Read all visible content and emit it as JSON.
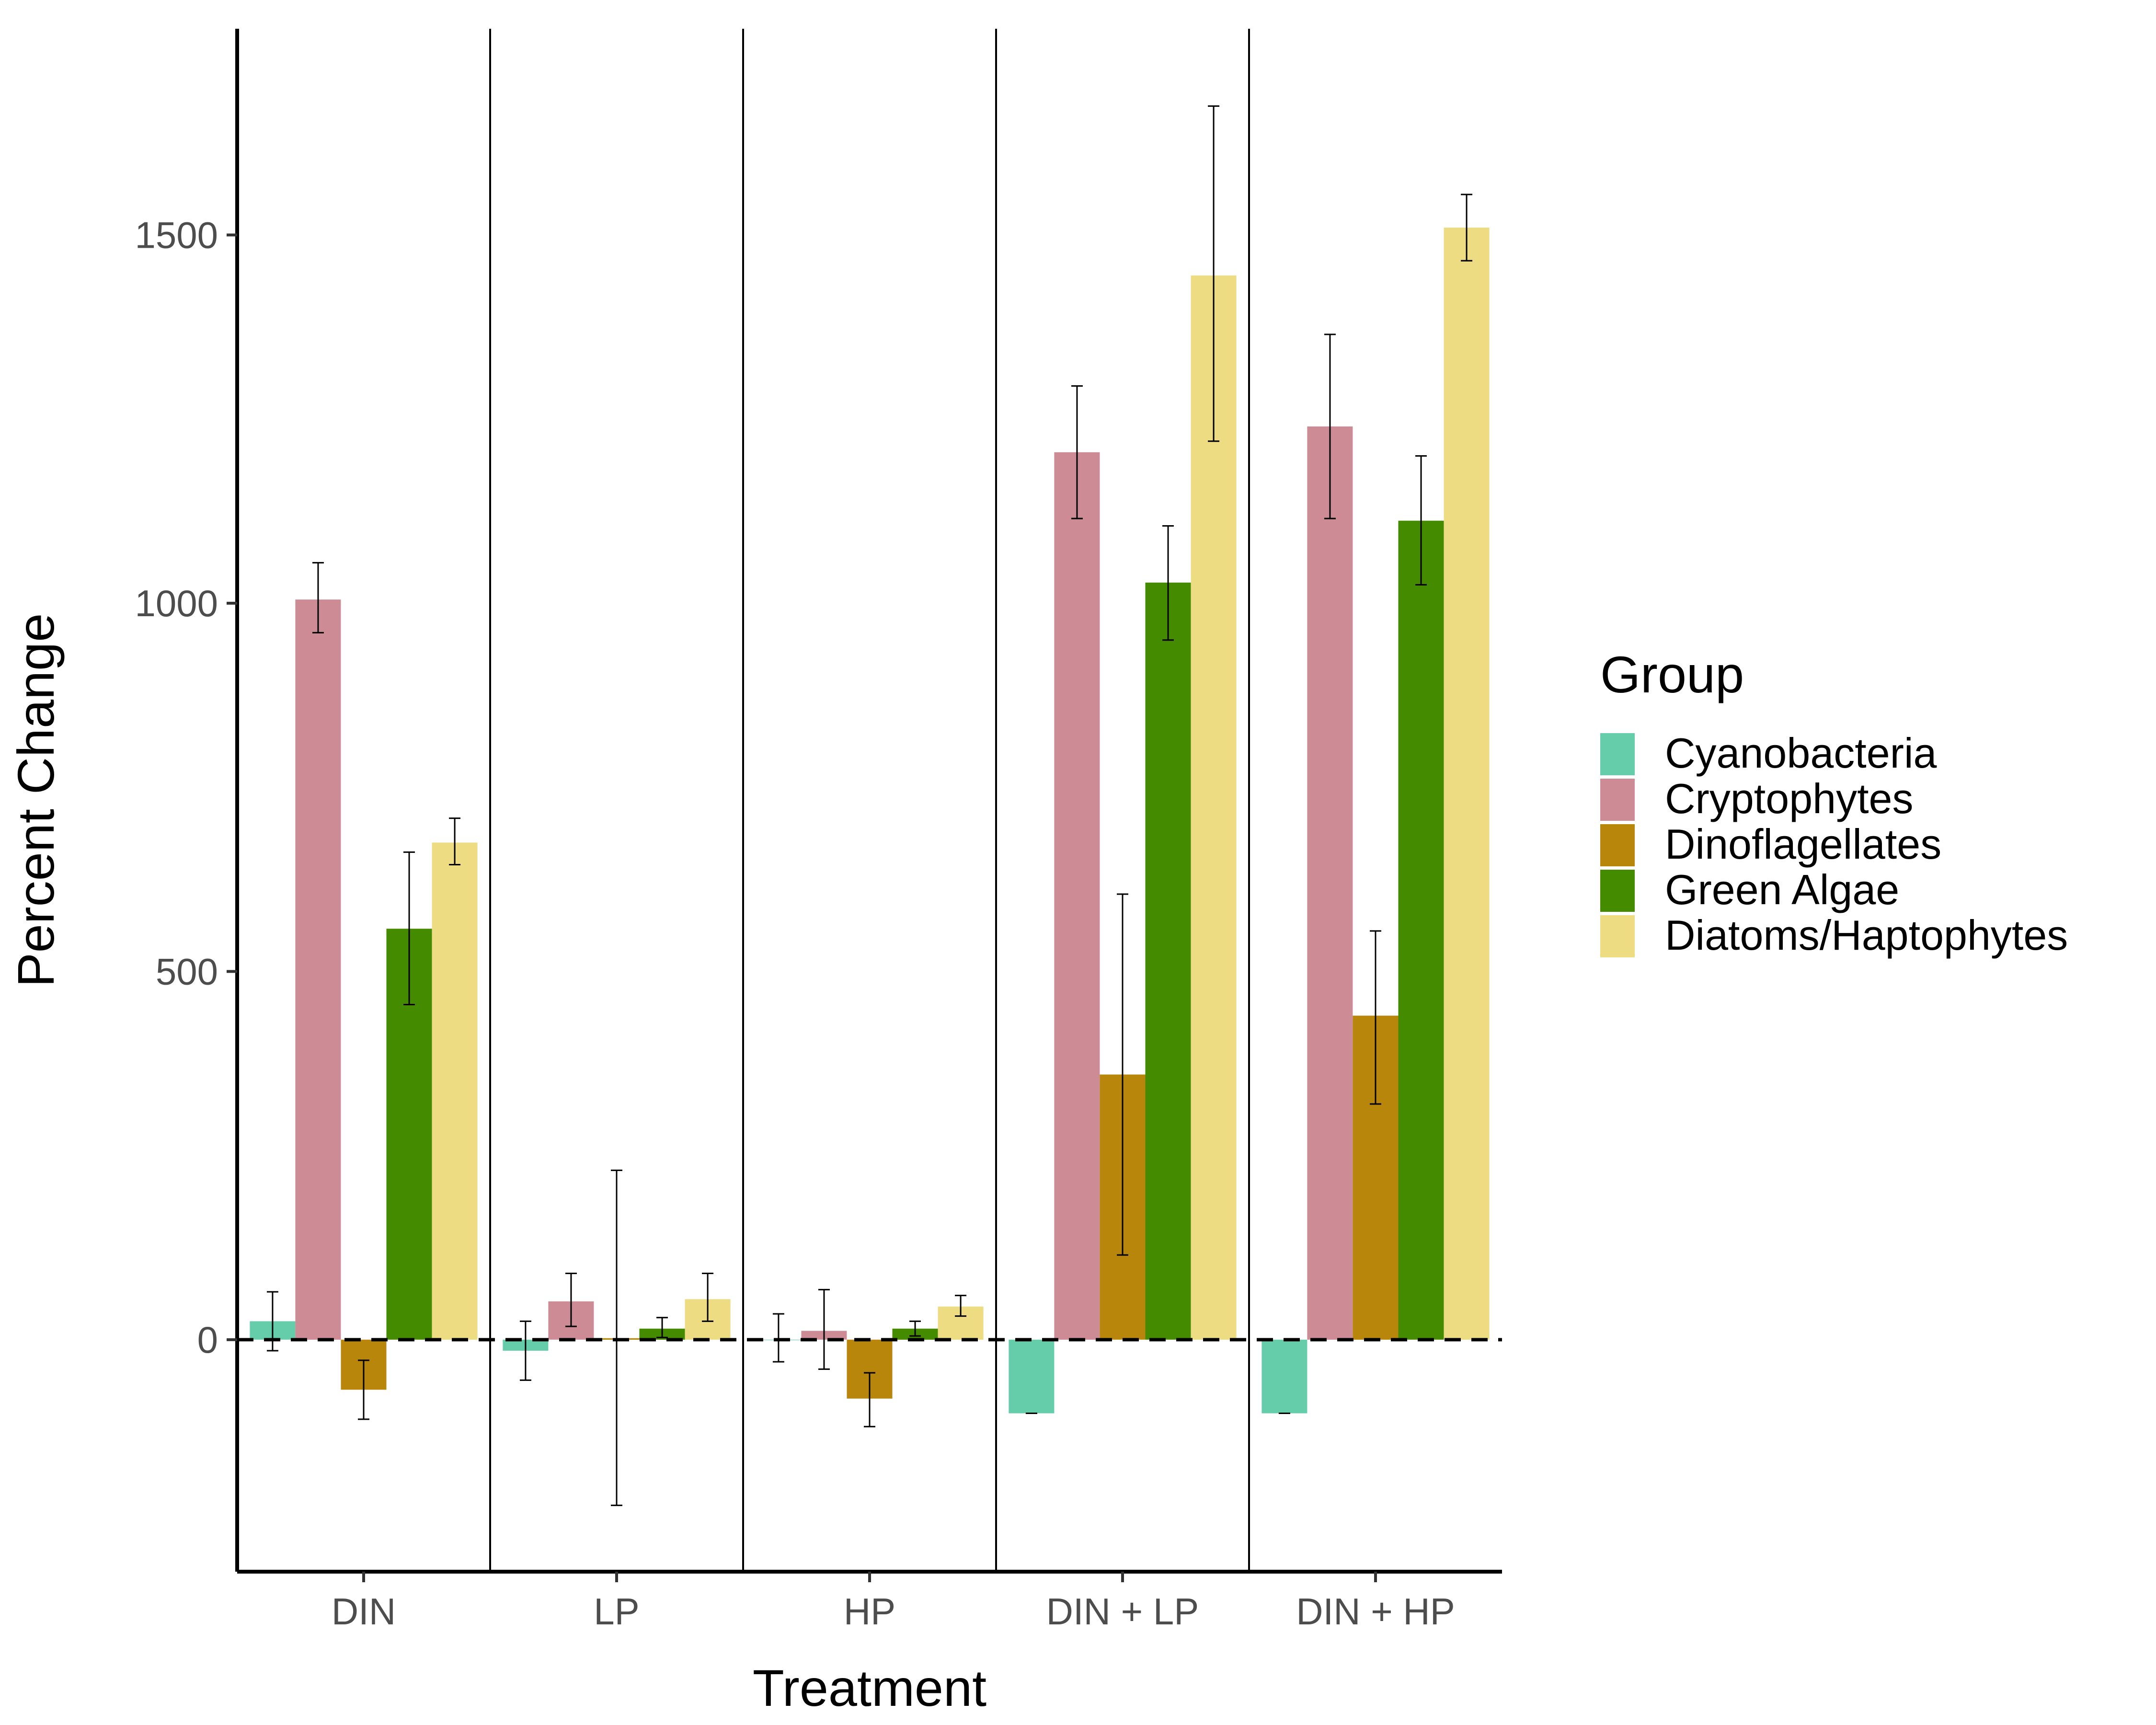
{
  "chart_data": {
    "type": "bar",
    "title": "",
    "xlabel": "Treatment",
    "ylabel": "Percent Change",
    "categories": [
      "DIN",
      "LP",
      "HP",
      "DIN + LP",
      "DIN + HP"
    ],
    "ylim": [
      -315,
      1780
    ],
    "yticks": [
      0,
      500,
      1000,
      1500
    ],
    "grid": false,
    "reference_line": {
      "y": 0,
      "style": "dashed"
    },
    "legend": {
      "title": "Group",
      "position": "right"
    },
    "series": [
      {
        "name": "Cyanobacteria",
        "color": "#66CDAA",
        "values": [
          25,
          -15,
          0,
          -100,
          -100
        ],
        "errors": [
          [
            -15,
            65
          ],
          [
            -55,
            25
          ],
          [
            -30,
            35
          ],
          [
            -100,
            -100
          ],
          [
            -100,
            -100
          ]
        ]
      },
      {
        "name": "Cryptophytes",
        "color": "#CD8C95",
        "values": [
          1005,
          52,
          12,
          1205,
          1240
        ],
        "errors": [
          [
            960,
            1055
          ],
          [
            18,
            90
          ],
          [
            -40,
            68
          ],
          [
            1115,
            1295
          ],
          [
            1115,
            1365
          ]
        ]
      },
      {
        "name": "Dinoflagellates",
        "color": "#B8860B",
        "values": [
          -68,
          2,
          -80,
          360,
          440
        ],
        "errors": [
          [
            -108,
            -28
          ],
          [
            -225,
            230
          ],
          [
            -118,
            -45
          ],
          [
            115,
            605
          ],
          [
            320,
            555
          ]
        ]
      },
      {
        "name": "Green Algae",
        "color": "#458B00",
        "values": [
          558,
          15,
          15,
          1028,
          1112
        ],
        "errors": [
          [
            455,
            662
          ],
          [
            3,
            30
          ],
          [
            5,
            25
          ],
          [
            950,
            1105
          ],
          [
            1025,
            1200
          ]
        ]
      },
      {
        "name": "Diatoms/Haptophytes",
        "color": "#EEDC82",
        "values": [
          675,
          55,
          45,
          1445,
          1510
        ],
        "errors": [
          [
            645,
            708
          ],
          [
            25,
            90
          ],
          [
            32,
            60
          ],
          [
            1220,
            1675
          ],
          [
            1465,
            1555
          ]
        ]
      }
    ]
  }
}
